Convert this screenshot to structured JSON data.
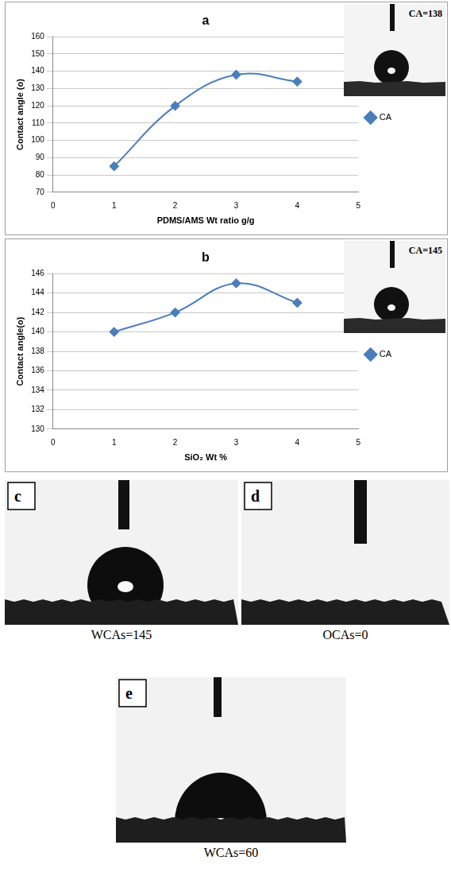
{
  "chart_data": [
    {
      "type": "line",
      "title": "a",
      "x_label": "PDMS/AMS Wt ratio g/g",
      "y_label": "Contact angle (o)",
      "x": [
        1,
        2,
        3,
        4
      ],
      "series": [
        {
          "name": "CA",
          "color": "#4a7ebb",
          "marker": "diamond",
          "line_style": "solid",
          "values": [
            85,
            120,
            138,
            134
          ]
        }
      ],
      "xlim": [
        0,
        5
      ],
      "xticks": [
        0,
        1,
        2,
        3,
        4,
        5
      ],
      "ylim": [
        70,
        160
      ],
      "yticks": [
        70,
        80,
        90,
        100,
        110,
        120,
        130,
        140,
        150,
        160
      ],
      "grid": "y",
      "legend": "right",
      "annotations": [
        "CA=138"
      ]
    },
    {
      "type": "line",
      "title": "b",
      "x_label": "SiO₂ Wt %",
      "y_label": "Contact angle(o)",
      "x": [
        1,
        2,
        3,
        4
      ],
      "series": [
        {
          "name": "CA",
          "color": "#4a7ebb",
          "marker": "diamond",
          "line_style": "solid",
          "values": [
            140,
            142,
            145,
            143
          ]
        }
      ],
      "xlim": [
        0,
        5
      ],
      "xticks": [
        0,
        1,
        2,
        3,
        4,
        5
      ],
      "ylim": [
        130,
        146
      ],
      "yticks": [
        130,
        132,
        134,
        136,
        138,
        140,
        142,
        144,
        146
      ],
      "grid": "y",
      "legend": "right",
      "annotations": [
        "CA=145"
      ]
    }
  ],
  "photos": [
    {
      "label": "c",
      "caption": "WCAs=145"
    },
    {
      "label": "d",
      "caption": "OCAs=0"
    },
    {
      "label": "e",
      "caption": "WCAs=60"
    }
  ]
}
